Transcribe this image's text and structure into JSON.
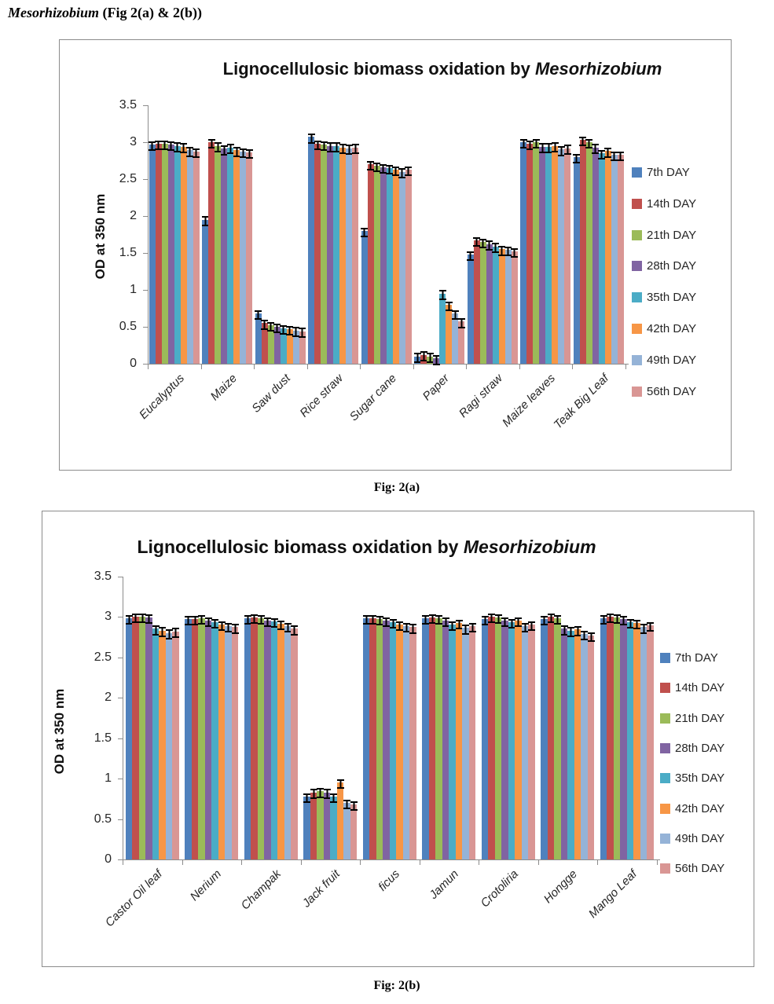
{
  "page": {
    "header": {
      "italic": "Mesorhizobium",
      "rest": "  (Fig 2(a) & 2(b))"
    }
  },
  "chart_data": [
    {
      "id": "fig-2a",
      "type": "bar",
      "title_prefix": "Lignocellulosic biomass oxidation by ",
      "title_italic": "Mesorhizobium",
      "caption": "Fig: 2(a)",
      "ylabel": "OD at 350 nm",
      "ylim": [
        0,
        3.5
      ],
      "ytick_step": 0.5,
      "yticks": [
        "0",
        "0.5",
        "1",
        "1.5",
        "2",
        "2.5",
        "3",
        "3.5"
      ],
      "grid": false,
      "legend_position": "right",
      "error_bar": 0.045,
      "categories": [
        "Eucalyptus",
        "Maize",
        "Saw dust",
        "Rice straw",
        "Sugar cane",
        "Paper",
        "Ragi straw",
        "Maize leaves",
        "Teak Big Leaf"
      ],
      "series": [
        {
          "name": "7th DAY",
          "color": "#4F81BD",
          "values": [
            2.97,
            1.95,
            0.68,
            3.07,
            1.8,
            0.1,
            1.48,
            3.0,
            2.8
          ]
        },
        {
          "name": "14th DAY",
          "color": "#C0504D",
          "values": [
            2.98,
            3.0,
            0.55,
            2.98,
            2.7,
            0.12,
            1.67,
            2.98,
            3.03
          ]
        },
        {
          "name": "21th DAY",
          "color": "#9BBB59",
          "values": [
            2.98,
            2.95,
            0.52,
            2.97,
            2.68,
            0.1,
            1.65,
            3.0,
            3.0
          ]
        },
        {
          "name": "28th DAY",
          "color": "#8064A2",
          "values": [
            2.97,
            2.91,
            0.5,
            2.95,
            2.66,
            0.07,
            1.62,
            2.94,
            2.93
          ]
        },
        {
          "name": "35th DAY",
          "color": "#4BACC6",
          "values": [
            2.95,
            2.93,
            0.48,
            2.95,
            2.65,
            0.95,
            1.59,
            2.94,
            2.85
          ]
        },
        {
          "name": "42th DAY",
          "color": "#F79646",
          "values": [
            2.94,
            2.89,
            0.47,
            2.93,
            2.63,
            0.8,
            1.55,
            2.95,
            2.88
          ]
        },
        {
          "name": "49th DAY",
          "color": "#95B3D7",
          "values": [
            2.89,
            2.87,
            0.45,
            2.92,
            2.6,
            0.68,
            1.54,
            2.9,
            2.83
          ]
        },
        {
          "name": "56th DAY",
          "color": "#D99694",
          "values": [
            2.87,
            2.86,
            0.44,
            2.93,
            2.63,
            0.57,
            1.52,
            2.92,
            2.83
          ]
        }
      ]
    },
    {
      "id": "fig-2b",
      "type": "bar",
      "title_prefix": "Lignocellulosic biomass oxidation by ",
      "title_italic": "Mesorhizobium",
      "caption": "Fig: 2(b)",
      "ylabel": "OD at 350 nm",
      "ylim": [
        0,
        3.5
      ],
      "ytick_step": 0.5,
      "yticks": [
        "0",
        "0.5",
        "1",
        "1.5",
        "2",
        "2.5",
        "3",
        "3.5"
      ],
      "grid": false,
      "legend_position": "right",
      "error_bar": 0.04,
      "categories": [
        "Castor Oil leaf",
        "Nerium",
        "Champak",
        "Jack fruit",
        "ficus",
        "Jamun",
        "Crotoliria",
        "Hongge",
        "Mango Leaf"
      ],
      "series": [
        {
          "name": "7th DAY",
          "color": "#4F81BD",
          "values": [
            2.98,
            2.97,
            2.98,
            0.78,
            2.98,
            2.98,
            2.97,
            2.97,
            2.98
          ]
        },
        {
          "name": "14th DAY",
          "color": "#C0504D",
          "values": [
            3.0,
            2.97,
            2.99,
            0.83,
            2.98,
            2.99,
            3.0,
            3.0,
            3.0
          ]
        },
        {
          "name": "21th DAY",
          "color": "#9BBB59",
          "values": [
            3.0,
            2.98,
            2.98,
            0.84,
            2.97,
            2.98,
            2.99,
            2.98,
            2.99
          ]
        },
        {
          "name": "28th DAY",
          "color": "#8064A2",
          "values": [
            2.99,
            2.95,
            2.95,
            0.83,
            2.95,
            2.95,
            2.95,
            2.85,
            2.97
          ]
        },
        {
          "name": "35th DAY",
          "color": "#4BACC6",
          "values": [
            2.85,
            2.93,
            2.94,
            0.78,
            2.93,
            2.9,
            2.93,
            2.83,
            2.93
          ]
        },
        {
          "name": "42th DAY",
          "color": "#F79646",
          "values": [
            2.83,
            2.9,
            2.91,
            0.95,
            2.9,
            2.92,
            2.95,
            2.84,
            2.92
          ]
        },
        {
          "name": "49th DAY",
          "color": "#95B3D7",
          "values": [
            2.8,
            2.88,
            2.88,
            0.7,
            2.88,
            2.86,
            2.88,
            2.79,
            2.87
          ]
        },
        {
          "name": "56th DAY",
          "color": "#D99694",
          "values": [
            2.82,
            2.87,
            2.85,
            0.68,
            2.87,
            2.88,
            2.9,
            2.77,
            2.89
          ]
        }
      ]
    }
  ]
}
